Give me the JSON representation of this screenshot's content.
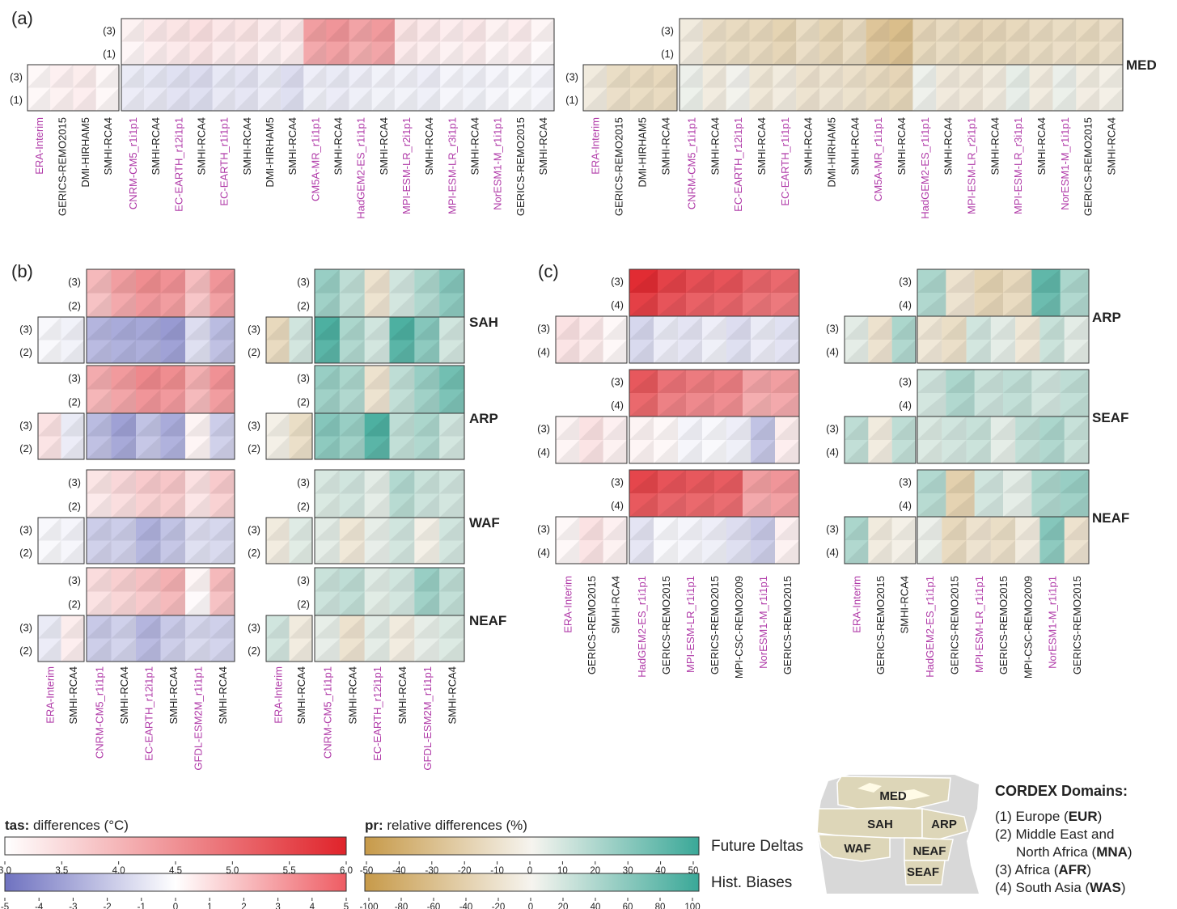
{
  "panel_labels": [
    "(a)",
    "(b)",
    "(c)"
  ],
  "colors": {
    "tas_min": "#ffffff",
    "tas_max": "#e0232a",
    "tas_neg": "#6f72c0",
    "pr_dry": "#c79a49",
    "pr_mid": "#f6f4ef",
    "pr_wet": "#3aa898",
    "gcm_label": "#b03aa8",
    "rcm_label": "#222222"
  },
  "labels": {
    "a": [
      {
        "t": "ERA-Interim",
        "g": 1
      },
      {
        "t": "GERICS-REMO2015",
        "g": 0
      },
      {
        "t": "DMI-HIRHAM5",
        "g": 0
      },
      {
        "t": "SMHI-RCA4",
        "g": 0
      },
      {
        "t": "CNRM-CM5_r1i1p1",
        "g": 1
      },
      {
        "t": "SMHI-RCA4",
        "g": 0
      },
      {
        "t": "EC-EARTH_r12i1p1",
        "g": 1
      },
      {
        "t": "SMHI-RCA4",
        "g": 0
      },
      {
        "t": "EC-EARTH_r1i1p1",
        "g": 1
      },
      {
        "t": "SMHI-RCA4",
        "g": 0
      },
      {
        "t": "DMI-HIRHAM5",
        "g": 0
      },
      {
        "t": "SMHI-RCA4",
        "g": 0
      },
      {
        "t": "CM5A-MR_r1i1p1",
        "g": 1
      },
      {
        "t": "SMHI-RCA4",
        "g": 0
      },
      {
        "t": "HadGEM2-ES_r1i1p1",
        "g": 1
      },
      {
        "t": "SMHI-RCA4",
        "g": 0
      },
      {
        "t": "MPI-ESM-LR_r2i1p1",
        "g": 1
      },
      {
        "t": "SMHI-RCA4",
        "g": 0
      },
      {
        "t": "MPI-ESM-LR_r3i1p1",
        "g": 1
      },
      {
        "t": "SMHI-RCA4",
        "g": 0
      },
      {
        "t": "NorESM1-M_r1i1p1",
        "g": 1
      },
      {
        "t": "GERICS-REMO2015",
        "g": 0
      },
      {
        "t": "SMHI-RCA4",
        "g": 0
      }
    ],
    "b": [
      {
        "t": "ERA-Interim",
        "g": 1
      },
      {
        "t": "SMHI-RCA4",
        "g": 0
      },
      {
        "t": "CNRM-CM5_r1i1p1",
        "g": 1
      },
      {
        "t": "SMHI-RCA4",
        "g": 0
      },
      {
        "t": "EC-EARTH_r12i1p1",
        "g": 1
      },
      {
        "t": "SMHI-RCA4",
        "g": 0
      },
      {
        "t": "GFDL-ESM2M_r1i1p1",
        "g": 1
      },
      {
        "t": "SMHI-RCA4",
        "g": 0
      }
    ],
    "c": [
      {
        "t": "ERA-Interim",
        "g": 1
      },
      {
        "t": "GERICS-REMO2015",
        "g": 0
      },
      {
        "t": "SMHI-RCA4",
        "g": 0
      },
      {
        "t": "HadGEM2-ES_r1i1p1",
        "g": 1
      },
      {
        "t": "GERICS-REMO2015",
        "g": 0
      },
      {
        "t": "MPI-ESM-LR_r1i1p1",
        "g": 1
      },
      {
        "t": "GERICS-REMO2015",
        "g": 0
      },
      {
        "t": "MPI-CSC-REMO2009",
        "g": 0
      },
      {
        "t": "NorESM1-M_r1i1p1",
        "g": 1
      },
      {
        "t": "GERICS-REMO2015",
        "g": 0
      }
    ]
  },
  "row_labels": {
    "a": [
      "(3)",
      "(1)"
    ],
    "b": [
      "(3)",
      "(2)"
    ],
    "c": [
      "(3)",
      "(4)"
    ]
  },
  "regions": {
    "a": [
      "MED"
    ],
    "b": [
      "SAH",
      "ARP",
      "WAF",
      "NEAF"
    ],
    "c": [
      "ARP",
      "SEAF",
      "NEAF"
    ]
  },
  "chart_data": {
    "type": "heatmap",
    "panel_a_tas_future": [
      1.3,
      1.5,
      1.6,
      1.7,
      1.55,
      1.6,
      1.45,
      1.5,
      3.2,
      3.4,
      3.1,
      3.3,
      1.6,
      1.5,
      1.4,
      1.5,
      1.3,
      1.4,
      1.2
    ],
    "panel_a_tas_bias": [
      0.2,
      0.4,
      0.5,
      0.2,
      -0.6,
      -0.7,
      -0.9,
      -1.0,
      -0.7,
      -0.8,
      -0.6,
      -1.0,
      -0.5,
      -0.6,
      -0.5,
      -0.4,
      -0.4,
      -0.5,
      -0.3,
      -0.4,
      -0.3,
      -0.2,
      -0.3
    ],
    "panel_a_pr_future": [
      -5,
      -12,
      -14,
      -15,
      -18,
      -13,
      -18,
      -14,
      -26,
      -30,
      -16,
      -14,
      -17,
      -16,
      -15,
      -14,
      -13,
      -14,
      -12
    ],
    "panel_a_pr_bias": [
      -10,
      -25,
      -28,
      -30,
      5,
      -10,
      2,
      -15,
      -10,
      -20,
      -18,
      -22,
      -28,
      -34,
      4,
      -12,
      -14,
      -10,
      8,
      -10,
      6,
      -8,
      -5
    ],
    "panel_b_tas_future": {
      "SAH": [
        2.6,
        3.2,
        3.6,
        3.5,
        2.5,
        3.4
      ],
      "ARP": [
        2.9,
        3.3,
        3.7,
        3.6,
        2.8,
        3.5
      ],
      "WAF": [
        1.6,
        1.9,
        2.2,
        2.3,
        1.7,
        2.2
      ],
      "NEAF": [
        1.8,
        2.1,
        2.4,
        2.8,
        1.2,
        2.6
      ]
    },
    "panel_b_tas_bias": {
      "SAH": [
        -0.2,
        -0.4,
        -2.2,
        -2.5,
        -2.6,
        -3.0,
        -1.0,
        -2.0
      ],
      "ARP": [
        0.8,
        -0.6,
        -2.0,
        -2.8,
        -1.8,
        -2.5,
        0.3,
        -1.5
      ],
      "WAF": [
        -0.2,
        -0.3,
        -1.5,
        -1.5,
        -2.3,
        -1.8,
        -1.0,
        -1.2
      ],
      "NEAF": [
        -0.6,
        0.5,
        -1.6,
        -1.4,
        -2.2,
        -1.6,
        -1.2,
        -1.4
      ]
    },
    "panel_b_pr_future": {
      "SAH": [
        25,
        15,
        -10,
        10,
        20,
        30
      ],
      "ARP": [
        25,
        20,
        -10,
        15,
        25,
        35
      ],
      "WAF": [
        8,
        10,
        5,
        18,
        12,
        10
      ],
      "NEAF": [
        12,
        15,
        6,
        10,
        25,
        15
      ]
    },
    "panel_b_pr_bias": {
      "SAH": [
        -30,
        20,
        90,
        40,
        20,
        90,
        60,
        20
      ],
      "ARP": [
        -5,
        -25,
        60,
        50,
        90,
        30,
        40,
        20
      ],
      "WAF": [
        -10,
        12,
        10,
        -15,
        8,
        20,
        -5,
        20
      ],
      "NEAF": [
        20,
        -10,
        8,
        -20,
        10,
        -10,
        8,
        15
      ]
    },
    "panel_c_tas_future": {
      "ARP": [
        5.8,
        5.3,
        5.0,
        4.9,
        4.5,
        4.4
      ],
      "SEAF": [
        4.8,
        4.2,
        4.0,
        3.9,
        3.1,
        3.2
      ],
      "NEAF": [
        5.2,
        4.9,
        4.8,
        4.7,
        3.2,
        3.4
      ]
    },
    "panel_c_tas_bias": {
      "ARP": [
        0.8,
        0.6,
        0.2,
        -1.2,
        -0.6,
        -0.8,
        -0.5,
        -1.0,
        -0.6,
        -0.9
      ],
      "SEAF": [
        0.3,
        0.8,
        0.4,
        0.3,
        0.2,
        -0.3,
        -0.2,
        -0.5,
        -1.8,
        0.5
      ],
      "NEAF": [
        0.2,
        0.8,
        0.4,
        -0.8,
        -0.2,
        -0.3,
        -0.5,
        -1.0,
        -1.6,
        0.4
      ]
    },
    "panel_c_pr_future": {
      "ARP": [
        20,
        -10,
        -18,
        -15,
        40,
        20
      ],
      "SEAF": [
        10,
        20,
        12,
        15,
        10,
        15
      ],
      "NEAF": [
        18,
        -20,
        10,
        5,
        20,
        25
      ]
    },
    "panel_c_pr_bias": {
      "ARP": [
        10,
        -20,
        40,
        -15,
        -25,
        20,
        10,
        -15,
        25,
        10
      ],
      "SEAF": [
        30,
        -10,
        30,
        15,
        20,
        25,
        10,
        30,
        40,
        25
      ],
      "NEAF": [
        40,
        -10,
        -5,
        5,
        -30,
        -20,
        -25,
        -10,
        60,
        -20
      ]
    }
  },
  "legend": {
    "tas_title_bold": "tas:",
    "tas_title_rest": " differences (°C)",
    "pr_title_bold": "pr:",
    "pr_title_rest": " relative differences (%)",
    "future_label": "Future Deltas",
    "hist_label": "Hist. Biases",
    "tas_future_ticks": [
      "3.0",
      "3.5",
      "4.0",
      "4.5",
      "5.0",
      "5.5",
      "6.0"
    ],
    "tas_bias_ticks": [
      "-5",
      "-4",
      "-3",
      "-2",
      "-1",
      "0",
      "1",
      "2",
      "3",
      "4",
      "5"
    ],
    "pr_future_ticks": [
      "-50",
      "-40",
      "-30",
      "-20",
      "-10",
      "0",
      "10",
      "20",
      "30",
      "40",
      "50"
    ],
    "pr_bias_ticks": [
      "-100",
      "-80",
      "-60",
      "-40",
      "-20",
      "0",
      "20",
      "40",
      "60",
      "80",
      "100"
    ]
  },
  "map": {
    "labels": [
      "MED",
      "SAH",
      "ARP",
      "WAF",
      "NEAF",
      "SEAF"
    ]
  },
  "cordex": {
    "title": "CORDEX Domains:",
    "items": [
      {
        "pre": "(1) Europe (",
        "bold": "EUR",
        "post": ")"
      },
      {
        "pre": "(2) Middle East and",
        "bold": "",
        "post": ""
      },
      {
        "pre": "North Africa (",
        "bold": "MNA",
        "post": ")"
      },
      {
        "pre": "(3) Africa (",
        "bold": "AFR",
        "post": ")"
      },
      {
        "pre": "(4) South Asia (",
        "bold": "WAS",
        "post": ")"
      }
    ]
  }
}
